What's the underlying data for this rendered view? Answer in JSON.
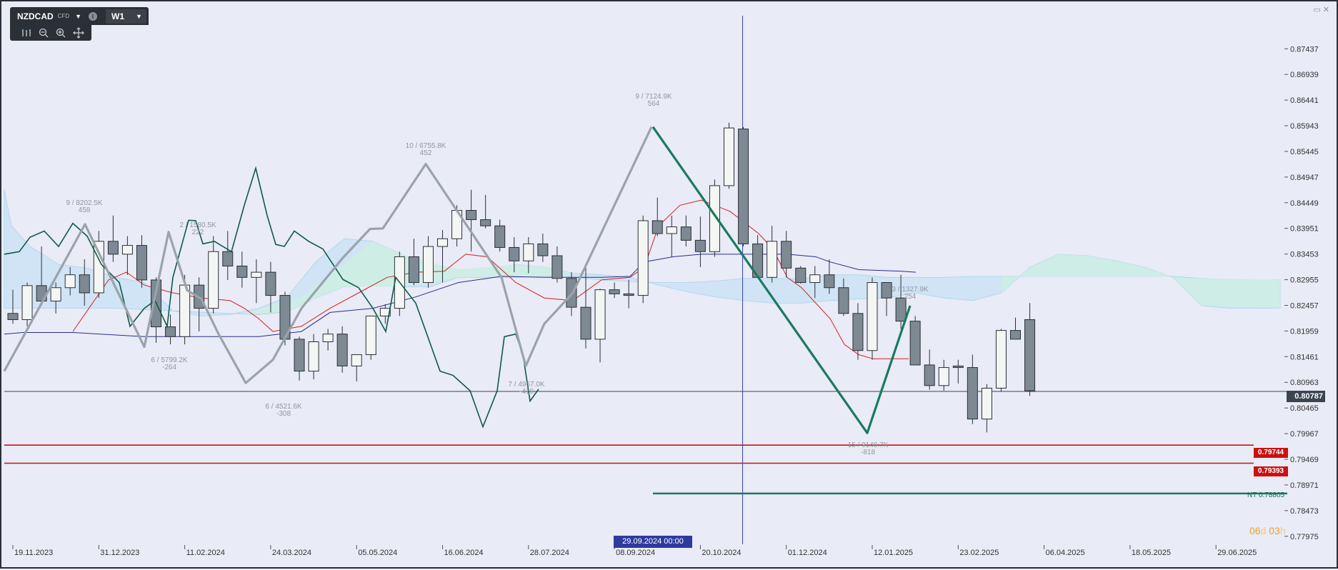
{
  "toolbar": {
    "symbol": "NZDCAD",
    "instrument_type": "CFD",
    "timeframe": "W1",
    "caret": "▼",
    "info": "i"
  },
  "tools": {
    "bars_icon": "bars-icon",
    "zoom_out_icon": "zoom-out-icon",
    "zoom_in_icon": "zoom-in-icon",
    "crosshair_icon": "crosshair-icon"
  },
  "window": {
    "restore_icon": "restore-icon",
    "close_icon": "close-icon"
  },
  "countdown": {
    "days": "06",
    "d": "d ",
    "hours": "03",
    "h": "h"
  },
  "crosshair_date": "29.09.2024 00:00",
  "current_price": "0.80787",
  "level_labels": [
    "0.79744",
    "0.79393"
  ],
  "nt_label": "NT 0.78805",
  "colors": {
    "background": "#e9ebf6",
    "bull_body": "#f4f6f4",
    "bear_body": "#7e8a93",
    "zigzag_grey": "#9aa3ab",
    "zigzag_green": "#1a7a5e",
    "tenkan": "#d42020",
    "kijun": "#2c2c8c",
    "chikou": "#0e5a46",
    "cloud_bull": "#cdeee3",
    "cloud_bear": "#cde3f5",
    "level_red": "#cc1111"
  },
  "chart_data": {
    "type": "candlestick",
    "y_range": [
      0.7775,
      0.8794
    ],
    "y_ticks": [
      "0.87437",
      "0.86939",
      "0.86441",
      "0.85943",
      "0.85445",
      "0.84947",
      "0.84449",
      "0.83951",
      "0.83453",
      "0.82955",
      "0.82457",
      "0.81959",
      "0.81461",
      "0.80963",
      "0.80465",
      "0.79967",
      "0.79469",
      "0.78971",
      "0.78473",
      "0.77975"
    ],
    "x_ticks": [
      "19.11.2023",
      "31.12.2023",
      "11.02.2024",
      "24.03.2024",
      "05.05.2024",
      "16.06.2024",
      "28.07.2024",
      "08.09.2024",
      "20.10.2024",
      "01.12.2024",
      "12.01.2025",
      "23.02.2025",
      "06.04.2025",
      "18.05.2025",
      "29.06.2025"
    ],
    "candles": [
      [
        0.823,
        0.8276,
        0.821,
        0.8218
      ],
      [
        0.8218,
        0.829,
        0.8205,
        0.8284
      ],
      [
        0.8284,
        0.836,
        0.8245,
        0.8254
      ],
      [
        0.8254,
        0.829,
        0.823,
        0.828
      ],
      [
        0.828,
        0.832,
        0.8265,
        0.8305
      ],
      [
        0.8305,
        0.8335,
        0.8245,
        0.827
      ],
      [
        0.827,
        0.839,
        0.826,
        0.837
      ],
      [
        0.837,
        0.842,
        0.833,
        0.8345
      ],
      [
        0.8345,
        0.838,
        0.8305,
        0.8362
      ],
      [
        0.8362,
        0.8382,
        0.828,
        0.8295
      ],
      [
        0.8295,
        0.83,
        0.8173,
        0.8204
      ],
      [
        0.8204,
        0.8228,
        0.817,
        0.8185
      ],
      [
        0.8185,
        0.8305,
        0.817,
        0.8285
      ],
      [
        0.8285,
        0.83,
        0.8195,
        0.824
      ],
      [
        0.824,
        0.838,
        0.823,
        0.835
      ],
      [
        0.835,
        0.839,
        0.8295,
        0.8322
      ],
      [
        0.8322,
        0.835,
        0.828,
        0.83
      ],
      [
        0.83,
        0.8335,
        0.825,
        0.831
      ],
      [
        0.831,
        0.833,
        0.8232,
        0.8265
      ],
      [
        0.8265,
        0.8272,
        0.8168,
        0.818
      ],
      [
        0.818,
        0.8185,
        0.81,
        0.8118
      ],
      [
        0.8118,
        0.819,
        0.8102,
        0.8175
      ],
      [
        0.8175,
        0.82,
        0.8158,
        0.819
      ],
      [
        0.819,
        0.8205,
        0.8115,
        0.8128
      ],
      [
        0.8128,
        0.815,
        0.8098,
        0.815
      ],
      [
        0.815,
        0.8222,
        0.814,
        0.8225
      ],
      [
        0.8225,
        0.8248,
        0.821,
        0.824
      ],
      [
        0.824,
        0.835,
        0.8225,
        0.834
      ],
      [
        0.834,
        0.8375,
        0.8285,
        0.829
      ],
      [
        0.829,
        0.838,
        0.828,
        0.836
      ],
      [
        0.836,
        0.8392,
        0.829,
        0.8375
      ],
      [
        0.8375,
        0.844,
        0.836,
        0.843
      ],
      [
        0.843,
        0.847,
        0.835,
        0.8412
      ],
      [
        0.8412,
        0.846,
        0.8395,
        0.84
      ],
      [
        0.84,
        0.8412,
        0.835,
        0.8358
      ],
      [
        0.8358,
        0.8378,
        0.831,
        0.8332
      ],
      [
        0.8332,
        0.8378,
        0.8308,
        0.8365
      ],
      [
        0.8365,
        0.8385,
        0.833,
        0.8342
      ],
      [
        0.8342,
        0.836,
        0.829,
        0.8298
      ],
      [
        0.8298,
        0.831,
        0.8225,
        0.8242
      ],
      [
        0.8242,
        0.832,
        0.8162,
        0.818
      ],
      [
        0.818,
        0.8278,
        0.8135,
        0.8276
      ],
      [
        0.8276,
        0.829,
        0.826,
        0.8268
      ],
      [
        0.8268,
        0.8295,
        0.824,
        0.8265
      ],
      [
        0.8265,
        0.842,
        0.825,
        0.841
      ],
      [
        0.841,
        0.8455,
        0.838,
        0.8385
      ],
      [
        0.8385,
        0.842,
        0.834,
        0.8398
      ],
      [
        0.8398,
        0.842,
        0.836,
        0.8372
      ],
      [
        0.8372,
        0.8418,
        0.832,
        0.835
      ],
      [
        0.835,
        0.849,
        0.834,
        0.8478
      ],
      [
        0.8478,
        0.86,
        0.8472,
        0.859
      ],
      [
        0.8588,
        0.8592,
        0.836,
        0.8365
      ],
      [
        0.8365,
        0.8382,
        0.83,
        0.83
      ],
      [
        0.83,
        0.84,
        0.829,
        0.837
      ],
      [
        0.837,
        0.839,
        0.83,
        0.8318
      ],
      [
        0.8318,
        0.8322,
        0.8288,
        0.829
      ],
      [
        0.829,
        0.8322,
        0.826,
        0.8305
      ],
      [
        0.8305,
        0.8335,
        0.8268,
        0.828
      ],
      [
        0.828,
        0.8298,
        0.8225,
        0.823
      ],
      [
        0.823,
        0.825,
        0.814,
        0.8158
      ],
      [
        0.8158,
        0.83,
        0.814,
        0.829
      ],
      [
        0.829,
        0.829,
        0.8225,
        0.826
      ],
      [
        0.826,
        0.8305,
        0.82,
        0.8215
      ],
      [
        0.8215,
        0.8225,
        0.814,
        0.813
      ],
      [
        0.813,
        0.816,
        0.8082,
        0.809
      ],
      [
        0.809,
        0.814,
        0.808,
        0.8125
      ],
      [
        0.8128,
        0.814,
        0.8094,
        0.8125
      ],
      [
        0.8125,
        0.815,
        0.8015,
        0.8025
      ],
      [
        0.8025,
        0.8093,
        0.7999,
        0.8085
      ],
      [
        0.8085,
        0.82,
        0.8078,
        0.8197
      ],
      [
        0.8197,
        0.8222,
        0.818,
        0.818
      ],
      [
        0.8218,
        0.825,
        0.807,
        0.808
      ]
    ],
    "zigzag_annotations": [
      [
        "9 / 8202.5K",
        "458"
      ],
      [
        "6 / 5799.2K",
        "-264"
      ],
      [
        "2 / 1580.5K",
        "222"
      ],
      [
        "6 / 4521.6K",
        "-308"
      ],
      [
        "10 / 6755.8K",
        "452"
      ],
      [
        "7 / 4967.0K",
        "-410"
      ],
      [
        "9 / 7124.9K",
        "564"
      ],
      [
        "15 / 9140.7K",
        "-818"
      ],
      [
        "3 / 1327.9K",
        "254"
      ]
    ],
    "horizontal_levels": [
      0.80787,
      0.79744,
      0.79393,
      0.78805
    ],
    "indicators": [
      "Ichimoku cloud",
      "Tenkan-sen",
      "Kijun-sen",
      "Chikou span",
      "ZigZag"
    ],
    "grid": false
  }
}
